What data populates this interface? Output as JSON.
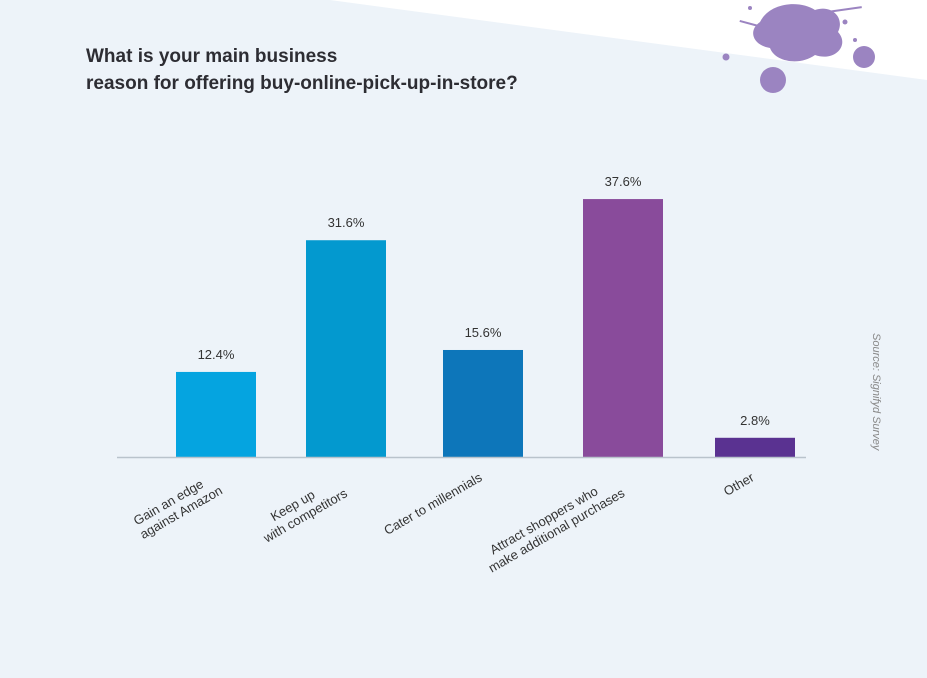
{
  "chart_data": {
    "type": "bar",
    "title": [
      "What is your main business",
      "reason for offering buy-online-pick-up-in-store?"
    ],
    "categories": [
      [
        "Gain an edge",
        "against Amazon"
      ],
      [
        "Keep up",
        "with competitors"
      ],
      [
        "Cater to millennials"
      ],
      [
        "Attract shoppers who",
        "make additional purchases"
      ],
      [
        "Other"
      ]
    ],
    "values": [
      12.4,
      31.6,
      15.6,
      37.6,
      2.8
    ],
    "value_labels": [
      "12.4%",
      "31.6%",
      "15.6%",
      "37.6%",
      "2.8%"
    ],
    "colors": [
      "#05a4e0",
      "#0399cf",
      "#0d76ba",
      "#894b9b",
      "#5a3291"
    ],
    "ylim": [
      0,
      40
    ],
    "grid": false,
    "source": "Source: Signifyd Survey"
  },
  "decoration": {
    "splash_color": "#9b84c1",
    "corner_color": "#ffffff"
  }
}
